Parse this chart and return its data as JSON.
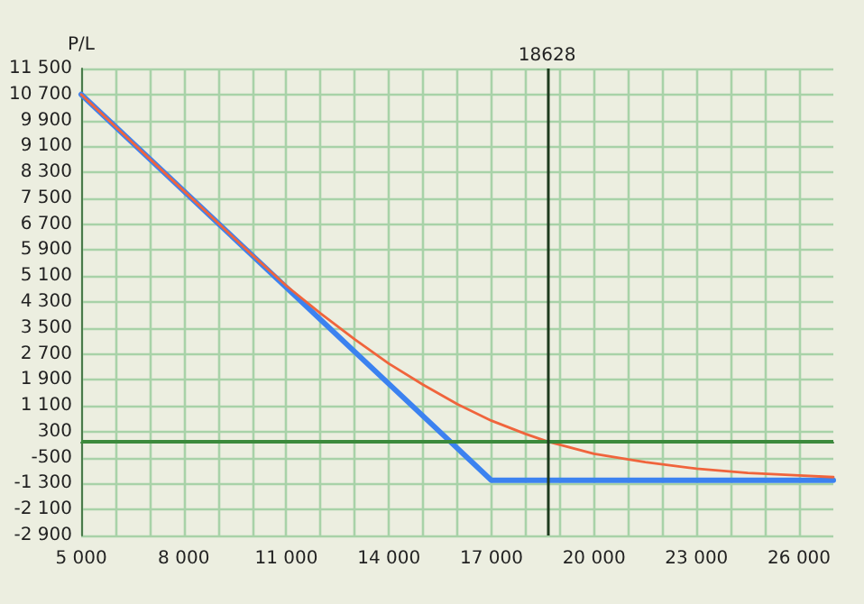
{
  "chart_data": {
    "type": "line",
    "ylabel": "P/L",
    "xlim": [
      5000,
      27000
    ],
    "xticks": [
      {
        "value": 5000,
        "label": "5 000"
      },
      {
        "value": 6000,
        "label": null
      },
      {
        "value": 7000,
        "label": null
      },
      {
        "value": 8000,
        "label": "8 000"
      },
      {
        "value": 9000,
        "label": null
      },
      {
        "value": 10000,
        "label": null
      },
      {
        "value": 11000,
        "label": "11 000"
      },
      {
        "value": 12000,
        "label": null
      },
      {
        "value": 13000,
        "label": null
      },
      {
        "value": 14000,
        "label": "14 000"
      },
      {
        "value": 15000,
        "label": null
      },
      {
        "value": 16000,
        "label": null
      },
      {
        "value": 17000,
        "label": "17 000"
      },
      {
        "value": 18000,
        "label": null
      },
      {
        "value": 19000,
        "label": null
      },
      {
        "value": 20000,
        "label": "20 000"
      },
      {
        "value": 21000,
        "label": null
      },
      {
        "value": 22000,
        "label": null
      },
      {
        "value": 23000,
        "label": "23 000"
      },
      {
        "value": 24000,
        "label": null
      },
      {
        "value": 25000,
        "label": null
      },
      {
        "value": 26000,
        "label": "26 000"
      }
    ],
    "ylim": [
      -2900,
      11500
    ],
    "yticks": [
      {
        "value": -2900,
        "label": "-2 900"
      },
      {
        "value": -2100,
        "label": "-2 100"
      },
      {
        "value": -1300,
        "label": "-1 300"
      },
      -500,
      300,
      {
        "value": 1100,
        "label": "1 100"
      },
      {
        "value": 1900,
        "label": "1 900"
      },
      {
        "value": 2700,
        "label": "2 700"
      },
      {
        "value": 3500,
        "label": "3 500"
      },
      {
        "value": 4300,
        "label": "4 300"
      },
      {
        "value": 5100,
        "label": "5 100"
      },
      {
        "value": 5900,
        "label": "5 900"
      },
      {
        "value": 6700,
        "label": "6 700"
      },
      {
        "value": 7500,
        "label": "7 500"
      },
      {
        "value": 8300,
        "label": "8 300"
      },
      {
        "value": 9100,
        "label": "9 100"
      },
      {
        "value": 9900,
        "label": "9 900"
      },
      {
        "value": 10700,
        "label": "10 700"
      },
      {
        "value": 11500,
        "label": "11 500"
      }
    ],
    "grid": true,
    "marker": "none",
    "line_style": "solid",
    "ref_lines": [
      {
        "axis": "y",
        "value": 0,
        "color": "#3c8a3c"
      },
      {
        "axis": "x",
        "value": 18628,
        "label": "18628",
        "color": "#1e3a1e"
      }
    ],
    "series": [
      {
        "color": "#f0643c",
        "x": [
          5000,
          8000,
          10000,
          11000,
          12000,
          13000,
          14000,
          15000,
          16000,
          17000,
          18000,
          18628,
          20000,
          21500,
          23000,
          24500,
          26000,
          27000
        ],
        "values": [
          10700,
          7730,
          5750,
          4800,
          3950,
          3150,
          2400,
          1750,
          1150,
          640,
          230,
          0,
          -380,
          -640,
          -840,
          -970,
          -1050,
          -1100
        ]
      },
      {
        "color": "#3c82f0",
        "x": [
          5000,
          17000,
          27000
        ],
        "values": [
          10700,
          -1200,
          -1200
        ]
      }
    ]
  }
}
